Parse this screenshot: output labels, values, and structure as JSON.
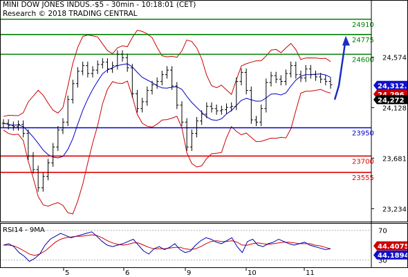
{
  "header": {
    "title": "MINI DOW JONES INDUS.-$5 - 30min - 10:18:01 (CET)",
    "copyright": "Research © 2018 TRADING CENTRAL"
  },
  "rsi_panel": {
    "title": "RSI14 - 9MA"
  },
  "colors": {
    "resistance": "#008000",
    "pivot": "#0000cc",
    "support": "#e00000",
    "price": "#000000",
    "bollinger": "#cc0000",
    "ma": "#0000cc",
    "forecast_arrow": "#1a2fc0",
    "rsi": "#0000aa",
    "rsi_ma": "#cc0000"
  },
  "chart_data": {
    "type": "line",
    "instrument": "MINI DOW JONES INDUS.-$5",
    "timeframe": "30min",
    "x_tick_labels": [
      "5",
      "6",
      "9",
      "10",
      "11"
    ],
    "ylim": [
      23120,
      25080
    ],
    "y_tick_labels": [
      "24,574",
      "24,128",
      "23,681",
      "23,234"
    ],
    "levels": [
      {
        "label": "24910",
        "value": 24910,
        "kind": "resistance"
      },
      {
        "label": "24775",
        "value": 24775,
        "kind": "resistance"
      },
      {
        "label": "24600",
        "value": 24600,
        "kind": "resistance"
      },
      {
        "label": "23950",
        "value": 23950,
        "kind": "pivot"
      },
      {
        "label": "23700",
        "value": 23700,
        "kind": "support"
      },
      {
        "label": "23555",
        "value": 23555,
        "kind": "support"
      }
    ],
    "price_badges": [
      {
        "label": "24,312.7",
        "value": 24312.7,
        "color": "#1010cc"
      },
      {
        "label": "24,296",
        "value": 24296,
        "color": "#cc0000"
      },
      {
        "label": "24,272",
        "value": 24272,
        "color": "#000000"
      }
    ],
    "price_series": [
      23990,
      23970,
      23960,
      23980,
      23900,
      23700,
      23580,
      23420,
      23520,
      23640,
      23780,
      23930,
      24000,
      24200,
      24340,
      24450,
      24500,
      24430,
      24460,
      24510,
      24530,
      24470,
      24500,
      24600,
      24570,
      24480,
      24250,
      24120,
      24180,
      24280,
      24330,
      24360,
      24420,
      24460,
      24320,
      24150,
      24000,
      23780,
      23900,
      24010,
      24070,
      24140,
      24120,
      24100,
      24110,
      24130,
      24140,
      24360,
      24440,
      24280,
      24020,
      24000,
      24120,
      24350,
      24410,
      24380,
      24360,
      24430,
      24500,
      24420,
      24390,
      24470,
      24420,
      24400,
      24380,
      24360,
      24330
    ],
    "forecast": {
      "from": 24272,
      "to": 24775
    },
    "rsi": {
      "ylim": [
        20,
        80
      ],
      "y_tick_labels": [
        "70",
        "30"
      ],
      "badges": [
        {
          "label": "44.4075",
          "value": 44.4075,
          "color": "#cc0000"
        },
        {
          "label": "44.1894",
          "value": 44.1894,
          "color": "#1010cc"
        }
      ],
      "rsi_series": [
        50,
        52,
        48,
        40,
        35,
        28,
        32,
        38,
        50,
        58,
        62,
        66,
        63,
        60,
        62,
        64,
        66,
        68,
        62,
        55,
        50,
        48,
        50,
        52,
        55,
        58,
        50,
        42,
        38,
        45,
        48,
        44,
        47,
        52,
        44,
        40,
        42,
        50,
        56,
        60,
        58,
        54,
        52,
        56,
        60,
        48,
        40,
        55,
        58,
        50,
        48,
        52,
        54,
        58,
        55,
        52,
        50,
        52,
        54,
        50,
        48,
        46,
        44,
        45
      ],
      "ma_series": [
        50,
        50,
        49,
        46,
        42,
        38,
        36,
        38,
        42,
        48,
        54,
        58,
        60,
        61,
        62,
        62,
        63,
        64,
        63,
        60,
        56,
        53,
        51,
        50,
        51,
        53,
        53,
        50,
        47,
        45,
        45,
        45,
        46,
        47,
        47,
        45,
        44,
        45,
        48,
        52,
        55,
        56,
        55,
        55,
        56,
        54,
        50,
        50,
        52,
        53,
        52,
        51,
        52,
        53,
        54,
        54,
        53,
        52,
        52,
        52,
        50,
        49,
        47,
        45
      ]
    }
  }
}
